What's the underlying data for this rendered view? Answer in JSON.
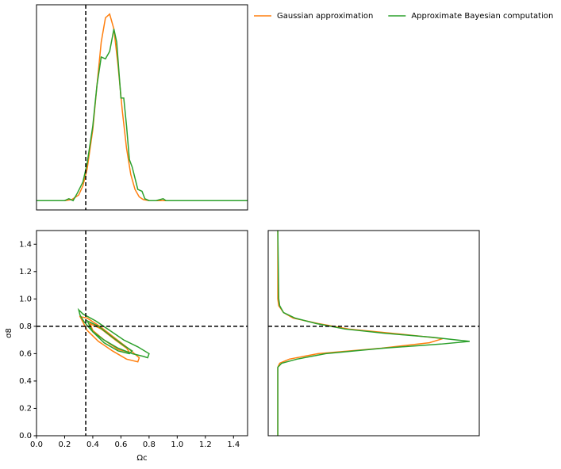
{
  "chart_data": [
    {
      "type": "line",
      "orientation": "vertical",
      "legend": "outside upper right",
      "xlim": [
        0,
        1.5
      ],
      "ylim": [
        -0.05,
        1.05
      ],
      "vline": 0.35,
      "series": [
        {
          "name": "Gaussian approximation",
          "color": "#ff7f0e",
          "x": [
            0,
            0.1,
            0.2,
            0.25,
            0.3,
            0.33,
            0.36,
            0.4,
            0.43,
            0.46,
            0.49,
            0.52,
            0.55,
            0.58,
            0.61,
            0.64,
            0.67,
            0.7,
            0.73,
            0.76,
            0.8,
            0.9,
            1.0,
            1.5
          ],
          "values": [
            0,
            0,
            0,
            0.005,
            0.03,
            0.08,
            0.17,
            0.38,
            0.62,
            0.85,
            0.98,
            1.0,
            0.92,
            0.72,
            0.48,
            0.28,
            0.14,
            0.06,
            0.02,
            0.005,
            0,
            0,
            0,
            0
          ]
        },
        {
          "name": "Approximate Bayesian computation",
          "color": "#2ca02c",
          "x": [
            0,
            0.2,
            0.23,
            0.26,
            0.29,
            0.33,
            0.36,
            0.4,
            0.43,
            0.46,
            0.49,
            0.52,
            0.55,
            0.57,
            0.6,
            0.62,
            0.64,
            0.66,
            0.68,
            0.7,
            0.72,
            0.75,
            0.77,
            0.8,
            0.85,
            0.9,
            0.92,
            0.95,
            1.0,
            1.5
          ],
          "values": [
            0,
            0,
            0.01,
            0,
            0.04,
            0.1,
            0.2,
            0.4,
            0.62,
            0.77,
            0.76,
            0.8,
            0.92,
            0.85,
            0.55,
            0.55,
            0.4,
            0.22,
            0.18,
            0.12,
            0.06,
            0.05,
            0.01,
            0,
            0,
            0.01,
            0,
            0,
            0,
            0
          ]
        }
      ]
    },
    {
      "type": "contour",
      "xlabel": "Ωc",
      "ylabel": "σ8",
      "xlim": [
        0,
        1.5
      ],
      "ylim": [
        0,
        1.5
      ],
      "vline": 0.35,
      "hline": 0.8,
      "xticks": [
        {
          "value": 0,
          "label": "0.0"
        },
        {
          "value": 0.2,
          "label": "0.2"
        },
        {
          "value": 0.4,
          "label": "0.4"
        },
        {
          "value": 0.6,
          "label": "0.6"
        },
        {
          "value": 0.8,
          "label": "0.8"
        },
        {
          "value": 1.0,
          "label": "1.0"
        },
        {
          "value": 1.2,
          "label": "1.2"
        },
        {
          "value": 1.4,
          "label": "1.4"
        }
      ],
      "yticks": [
        {
          "value": 0,
          "label": "0.0"
        },
        {
          "value": 0.2,
          "label": "0.2"
        },
        {
          "value": 0.4,
          "label": "0.4"
        },
        {
          "value": 0.6,
          "label": "0.6"
        },
        {
          "value": 0.8,
          "label": "0.8"
        },
        {
          "value": 1.0,
          "label": "1.0"
        },
        {
          "value": 1.2,
          "label": "1.2"
        },
        {
          "value": 1.4,
          "label": "1.4"
        }
      ],
      "series": [
        {
          "color": "#ff7f0e",
          "contours": [
            {
              "x": [
                0.31,
                0.36,
                0.45,
                0.55,
                0.65,
                0.73,
                0.72,
                0.64,
                0.54,
                0.44,
                0.36,
                0.31
              ],
              "y": [
                0.87,
                0.86,
                0.8,
                0.72,
                0.64,
                0.57,
                0.54,
                0.56,
                0.62,
                0.69,
                0.77,
                0.87
              ]
            },
            {
              "x": [
                0.38,
                0.46,
                0.56,
                0.64,
                0.66,
                0.58,
                0.48,
                0.4,
                0.38
              ],
              "y": [
                0.82,
                0.78,
                0.7,
                0.64,
                0.61,
                0.63,
                0.7,
                0.77,
                0.82
              ]
            }
          ]
        },
        {
          "color": "#2ca02c",
          "contours": [
            {
              "x": [
                0.3,
                0.33,
                0.42,
                0.52,
                0.62,
                0.72,
                0.8,
                0.79,
                0.76,
                0.68,
                0.58,
                0.48,
                0.4,
                0.34,
                0.31,
                0.3
              ],
              "y": [
                0.92,
                0.89,
                0.84,
                0.77,
                0.7,
                0.65,
                0.6,
                0.57,
                0.58,
                0.6,
                0.64,
                0.7,
                0.76,
                0.83,
                0.88,
                0.92
              ]
            },
            {
              "x": [
                0.36,
                0.44,
                0.54,
                0.62,
                0.68,
                0.66,
                0.58,
                0.48,
                0.4,
                0.36
              ],
              "y": [
                0.84,
                0.8,
                0.72,
                0.66,
                0.62,
                0.6,
                0.62,
                0.68,
                0.76,
                0.84
              ]
            }
          ]
        }
      ]
    },
    {
      "type": "line",
      "orientation": "horizontal",
      "xlim": [
        -0.05,
        1.05
      ],
      "ylim": [
        0,
        1.5
      ],
      "hline": 0.8,
      "series": [
        {
          "color": "#ff7f0e",
          "y": [
            0,
            0.4,
            0.5,
            0.53,
            0.56,
            0.6,
            0.64,
            0.68,
            0.71,
            0.74,
            0.78,
            0.82,
            0.86,
            0.9,
            0.95,
            1.0,
            1.5
          ],
          "values": [
            0,
            0,
            0,
            0.01,
            0.06,
            0.21,
            0.54,
            0.79,
            0.86,
            0.66,
            0.37,
            0.21,
            0.08,
            0.03,
            0.005,
            0,
            0
          ]
        },
        {
          "color": "#2ca02c",
          "y": [
            0,
            0.5,
            0.53,
            0.56,
            0.6,
            0.64,
            0.67,
            0.69,
            0.72,
            0.75,
            0.78,
            0.82,
            0.86,
            0.9,
            0.95,
            1.0,
            1.5
          ],
          "values": [
            0,
            0,
            0.02,
            0.1,
            0.25,
            0.55,
            0.85,
            1.0,
            0.8,
            0.55,
            0.35,
            0.2,
            0.09,
            0.03,
            0.01,
            0.005,
            0
          ]
        }
      ]
    }
  ]
}
